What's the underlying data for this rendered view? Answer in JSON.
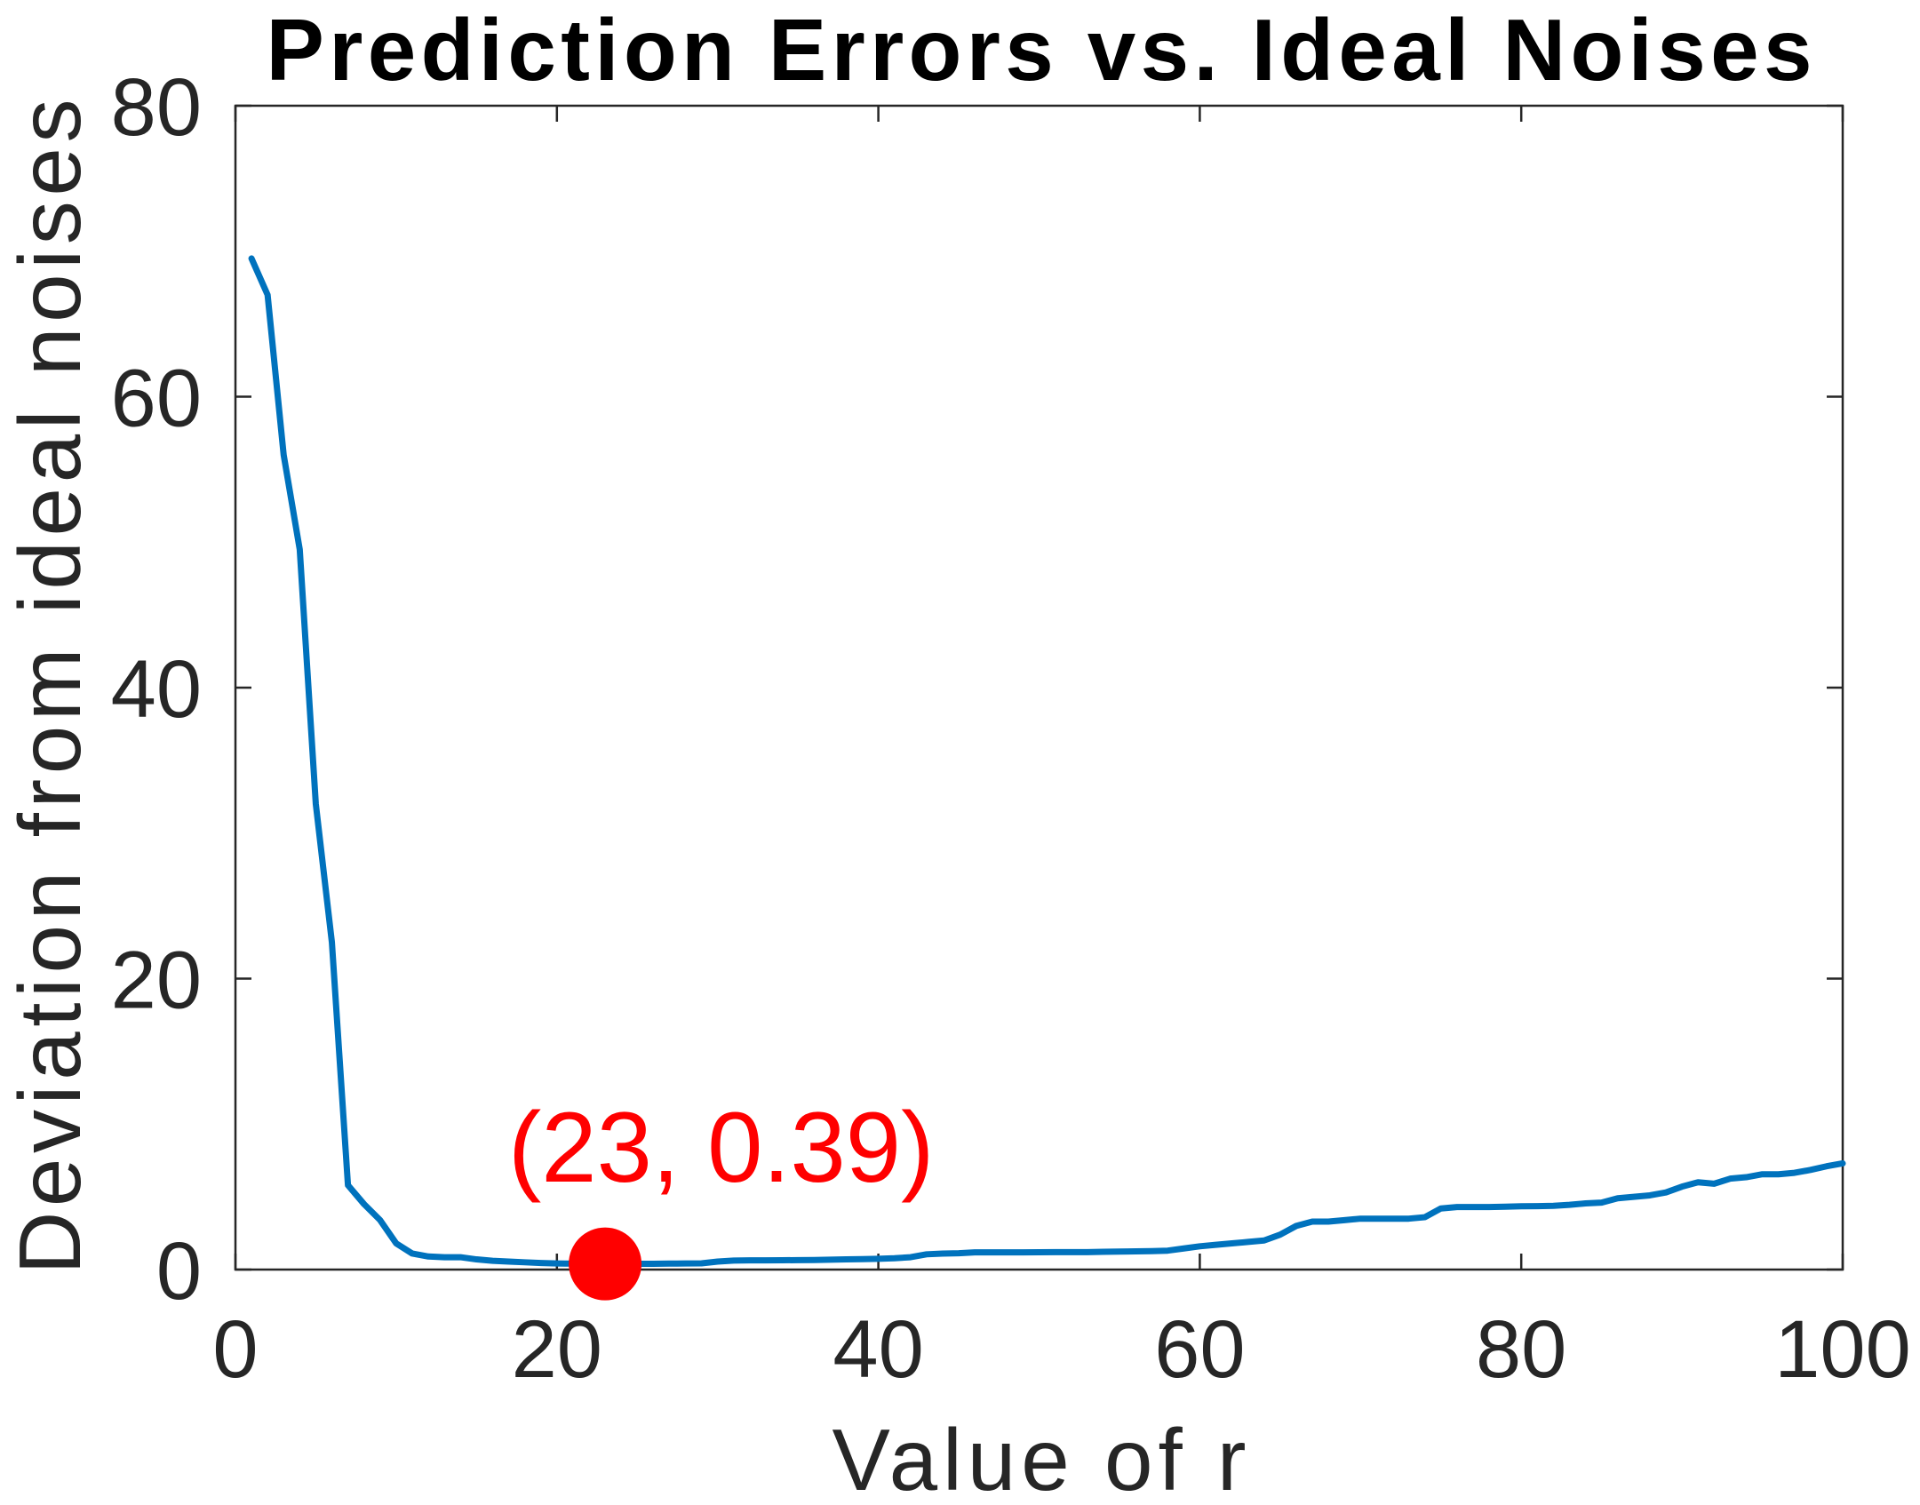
{
  "chart_data": {
    "type": "line",
    "title": "Prediction Errors vs. Ideal Noises",
    "xlabel": "Value of r",
    "ylabel": "Deviation from ideal noises",
    "xlim": [
      0,
      100
    ],
    "ylim": [
      0,
      80
    ],
    "xticks": [
      0,
      20,
      40,
      60,
      80,
      100
    ],
    "yticks": [
      0,
      20,
      40,
      60,
      80
    ],
    "grid": false,
    "series": [
      {
        "color": "#0072BD",
        "x": [
          1,
          2,
          3,
          4,
          5,
          6,
          7,
          8,
          9,
          10,
          11,
          12,
          13,
          14,
          15,
          16,
          17,
          18,
          19,
          20,
          21,
          22,
          23,
          24,
          25,
          26,
          27,
          28,
          29,
          30,
          31,
          32,
          33,
          34,
          35,
          36,
          37,
          38,
          39,
          40,
          41,
          42,
          43,
          44,
          45,
          46,
          47,
          48,
          49,
          50,
          51,
          52,
          53,
          54,
          55,
          56,
          57,
          58,
          59,
          60,
          61,
          62,
          63,
          64,
          65,
          66,
          67,
          68,
          69,
          70,
          71,
          72,
          73,
          74,
          75,
          76,
          77,
          78,
          79,
          80,
          81,
          82,
          83,
          84,
          85,
          86,
          87,
          88,
          89,
          90,
          91,
          92,
          93,
          94,
          95,
          96,
          97,
          98,
          99,
          100
        ],
        "y": [
          69.5,
          67.0,
          56.0,
          49.5,
          32.0,
          22.5,
          5.8,
          4.5,
          3.4,
          1.8,
          1.1,
          0.9,
          0.85,
          0.85,
          0.7,
          0.6,
          0.55,
          0.5,
          0.45,
          0.42,
          0.41,
          0.4,
          0.39,
          0.39,
          0.4,
          0.4,
          0.41,
          0.42,
          0.43,
          0.55,
          0.62,
          0.63,
          0.63,
          0.64,
          0.65,
          0.66,
          0.68,
          0.7,
          0.72,
          0.74,
          0.78,
          0.85,
          1.05,
          1.1,
          1.12,
          1.18,
          1.18,
          1.18,
          1.18,
          1.19,
          1.2,
          1.2,
          1.2,
          1.22,
          1.24,
          1.25,
          1.27,
          1.3,
          1.45,
          1.6,
          1.7,
          1.8,
          1.9,
          2.0,
          2.4,
          3.0,
          3.3,
          3.3,
          3.4,
          3.5,
          3.5,
          3.5,
          3.5,
          3.6,
          4.2,
          4.3,
          4.3,
          4.3,
          4.32,
          4.35,
          4.36,
          4.38,
          4.45,
          4.55,
          4.6,
          4.9,
          5.0,
          5.1,
          5.3,
          5.7,
          6.0,
          5.9,
          6.25,
          6.35,
          6.55,
          6.55,
          6.65,
          6.85,
          7.1,
          7.3
        ]
      }
    ],
    "highlight": {
      "x": 23,
      "y": 0.39,
      "label": "(23, 0.39)",
      "color": "#FF0000"
    }
  }
}
